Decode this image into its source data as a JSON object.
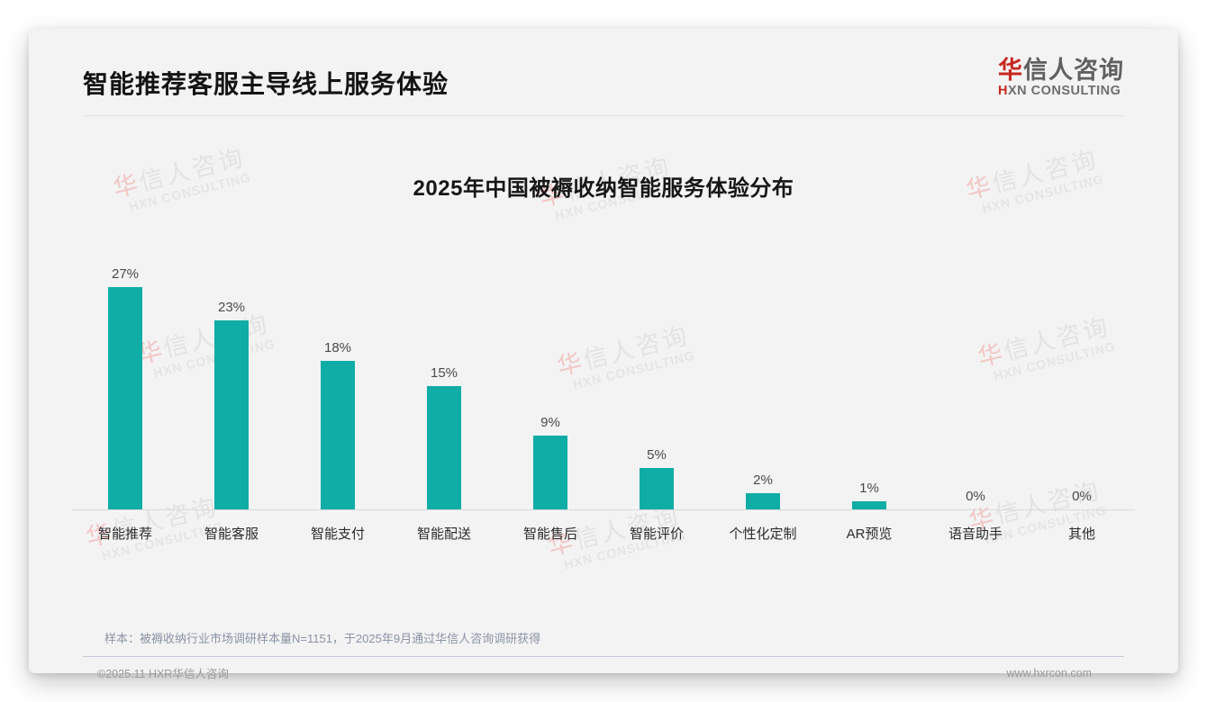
{
  "page": {
    "header": {
      "title": "智能推荐客服主导线上服务体验"
    },
    "logo": {
      "cn_first": "华",
      "cn_rest": "信人咨询",
      "en_first": "H",
      "en_rest": "XN CONSULTING"
    },
    "watermark": {
      "cn_first": "华",
      "cn_rest": "信人咨询",
      "en": "HXN CONSULTING"
    },
    "note": "样本：被褥收纳行业市场调研样本量N=1151，于2025年9月通过华信人咨询调研获得",
    "footer": {
      "copyright": "©2025.11 HXR华信人咨询",
      "website": "www.hxrcon.com"
    },
    "colors": {
      "logo_red": "#c8281e"
    }
  },
  "chart_data": {
    "type": "bar",
    "title": "2025年中国被褥收纳智能服务体验分布",
    "categories": [
      "智能推荐",
      "智能客服",
      "智能支付",
      "智能配送",
      "智能售后",
      "智能评价",
      "个性化定制",
      "AR预览",
      "语音助手",
      "其他"
    ],
    "values": [
      27,
      23,
      18,
      15,
      9,
      5,
      2,
      1,
      0,
      0
    ],
    "unit": "%",
    "bar_color": "#0fada6",
    "value_labels": true,
    "grid": false,
    "ylim": [
      0,
      30
    ],
    "xlabel": "",
    "ylabel": ""
  }
}
